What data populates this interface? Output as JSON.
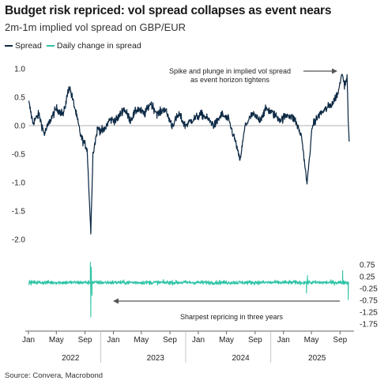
{
  "title": "Budget risk repriced: vol spread collapses as event nears",
  "subtitle": "2m-1m implied vol spread on GBP/EUR",
  "legend": [
    {
      "label": "Spread",
      "color": "#0d2a45"
    },
    {
      "label": "Daily change in spread",
      "color": "#2ec4a5"
    }
  ],
  "source": "Source: Convera, Macrobond",
  "colors": {
    "spread": "#0d2a45",
    "change": "#2ec4a5",
    "axis": "#666666",
    "zero": "#999999"
  },
  "chart_data": [
    {
      "type": "line",
      "name": "top-panel",
      "series_name": "Spread",
      "ylim": [
        -2.0,
        1.0
      ],
      "yticks": [
        1.0,
        0.5,
        0.0,
        -0.5,
        -1.0,
        -1.5,
        -2.0
      ],
      "ytick_labels": [
        "1.0",
        "0.5",
        "0.0",
        "-0.5",
        "-1.0",
        "-1.5",
        "-2.0"
      ],
      "axis_side": "left",
      "keypoints": [
        {
          "x": "2022-01-03",
          "y": 0.4
        },
        {
          "x": "2022-01-20",
          "y": 0.05
        },
        {
          "x": "2022-02-15",
          "y": 0.2
        },
        {
          "x": "2022-03-10",
          "y": -0.15
        },
        {
          "x": "2022-04-05",
          "y": 0.1
        },
        {
          "x": "2022-05-01",
          "y": 0.3
        },
        {
          "x": "2022-06-01",
          "y": 0.2
        },
        {
          "x": "2022-06-25",
          "y": 0.7
        },
        {
          "x": "2022-07-20",
          "y": 0.3
        },
        {
          "x": "2022-08-15",
          "y": -0.2
        },
        {
          "x": "2022-09-10",
          "y": -0.4
        },
        {
          "x": "2022-09-26",
          "y": -1.88
        },
        {
          "x": "2022-10-05",
          "y": -0.5
        },
        {
          "x": "2022-10-25",
          "y": -0.05
        },
        {
          "x": "2022-11-20",
          "y": -0.1
        },
        {
          "x": "2022-12-15",
          "y": 0.1
        },
        {
          "x": "2023-01-15",
          "y": 0.1
        },
        {
          "x": "2023-02-15",
          "y": 0.3
        },
        {
          "x": "2023-03-15",
          "y": 0.1
        },
        {
          "x": "2023-04-15",
          "y": 0.3
        },
        {
          "x": "2023-05-15",
          "y": 0.2
        },
        {
          "x": "2023-06-10",
          "y": 0.4
        },
        {
          "x": "2023-07-10",
          "y": 0.2
        },
        {
          "x": "2023-08-10",
          "y": 0.3
        },
        {
          "x": "2023-09-10",
          "y": 0.0
        },
        {
          "x": "2023-10-10",
          "y": 0.2
        },
        {
          "x": "2023-11-05",
          "y": 0.0
        },
        {
          "x": "2023-12-05",
          "y": 0.1
        },
        {
          "x": "2024-01-15",
          "y": 0.2
        },
        {
          "x": "2024-02-15",
          "y": 0.1
        },
        {
          "x": "2024-03-10",
          "y": 0.0
        },
        {
          "x": "2024-04-10",
          "y": 0.2
        },
        {
          "x": "2024-05-10",
          "y": 0.1
        },
        {
          "x": "2024-06-10",
          "y": -0.3
        },
        {
          "x": "2024-06-28",
          "y": -0.62
        },
        {
          "x": "2024-07-20",
          "y": 0.0
        },
        {
          "x": "2024-08-20",
          "y": 0.2
        },
        {
          "x": "2024-09-20",
          "y": 0.1
        },
        {
          "x": "2024-10-20",
          "y": 0.3
        },
        {
          "x": "2024-11-20",
          "y": 0.2
        },
        {
          "x": "2024-12-20",
          "y": 0.1
        },
        {
          "x": "2025-01-20",
          "y": 0.2
        },
        {
          "x": "2025-02-20",
          "y": 0.1
        },
        {
          "x": "2025-03-20",
          "y": -0.2
        },
        {
          "x": "2025-04-12",
          "y": -1.03
        },
        {
          "x": "2025-05-05",
          "y": 0.0
        },
        {
          "x": "2025-06-05",
          "y": 0.2
        },
        {
          "x": "2025-07-05",
          "y": 0.3
        },
        {
          "x": "2025-08-01",
          "y": 0.4
        },
        {
          "x": "2025-08-25",
          "y": 0.6
        },
        {
          "x": "2025-09-10",
          "y": 0.95
        },
        {
          "x": "2025-09-20",
          "y": 0.7
        },
        {
          "x": "2025-10-01",
          "y": 0.9
        },
        {
          "x": "2025-10-06",
          "y": 0.1
        },
        {
          "x": "2025-10-10",
          "y": -0.28
        }
      ],
      "annotation": "Spike and plunge in implied vol spread as event horizon tightens"
    },
    {
      "type": "line",
      "name": "bottom-panel",
      "series_name": "Daily change in spread",
      "ylim": [
        -1.85,
        0.95
      ],
      "yticks": [
        0.75,
        0.25,
        -0.25,
        -0.75,
        -1.25,
        -1.75
      ],
      "ytick_labels": [
        "0.75",
        "0.25",
        "-0.25",
        "-0.75",
        "-1.25",
        "-1.75"
      ],
      "axis_side": "right",
      "keypoints": [
        {
          "x": "2022-09-24",
          "y": 0.85
        },
        {
          "x": "2022-09-26",
          "y": -1.45
        },
        {
          "x": "2022-09-28",
          "y": 0.65
        },
        {
          "x": "2022-10-01",
          "y": -0.55
        },
        {
          "x": "2025-04-10",
          "y": -0.45
        },
        {
          "x": "2025-04-14",
          "y": 0.3
        },
        {
          "x": "2025-09-12",
          "y": 0.5
        },
        {
          "x": "2025-10-06",
          "y": -0.72
        }
      ],
      "annotation": "Sharpest repricing in three years"
    }
  ],
  "x_axis": {
    "start": "2022-01-01",
    "end": "2025-10-31",
    "month_ticks": [
      {
        "date": "2022-01-01",
        "label": "Jan"
      },
      {
        "date": "2022-05-01",
        "label": "May"
      },
      {
        "date": "2022-09-01",
        "label": "Sep"
      },
      {
        "date": "2023-01-01",
        "label": "Jan"
      },
      {
        "date": "2023-05-01",
        "label": "May"
      },
      {
        "date": "2023-09-01",
        "label": "Sep"
      },
      {
        "date": "2024-01-01",
        "label": "Jan"
      },
      {
        "date": "2024-05-01",
        "label": "May"
      },
      {
        "date": "2024-09-01",
        "label": "Sep"
      },
      {
        "date": "2025-01-01",
        "label": "Jan"
      },
      {
        "date": "2025-05-01",
        "label": "May"
      },
      {
        "date": "2025-09-01",
        "label": "Sep"
      }
    ],
    "year_labels": [
      {
        "date": "2022-07-01",
        "label": "2022"
      },
      {
        "date": "2023-07-01",
        "label": "2023"
      },
      {
        "date": "2024-07-01",
        "label": "2024"
      },
      {
        "date": "2025-05-25",
        "label": "2025"
      }
    ]
  }
}
